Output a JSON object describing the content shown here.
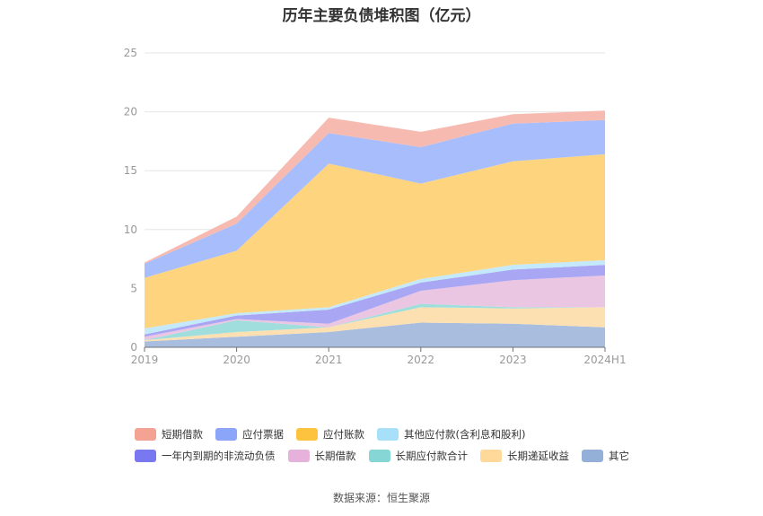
{
  "page": {
    "title": "历年主要负债堆积图（亿元）",
    "source": "数据来源：恒生聚源"
  },
  "chart_data": {
    "type": "area",
    "stacked": true,
    "title": "历年主要负债堆积图（亿元）",
    "xlabel": "",
    "ylabel": "",
    "categories": [
      "2019",
      "2020",
      "2021",
      "2022",
      "2023",
      "2024H1"
    ],
    "ylim": [
      0,
      25
    ],
    "yticks": [
      0,
      5,
      10,
      15,
      20,
      25
    ],
    "grid": true,
    "legend_position": "bottom",
    "series": [
      {
        "name": "其它",
        "color": "#a9bedf",
        "values": [
          0.5,
          0.9,
          1.3,
          2.1,
          2.0,
          1.7
        ]
      },
      {
        "name": "长期递延收益",
        "color": "#fde0b1",
        "values": [
          0.1,
          0.4,
          0.4,
          1.3,
          1.3,
          1.7
        ]
      },
      {
        "name": "长期应付款合计",
        "color": "#a0dede",
        "values": [
          0.0,
          1.0,
          0.0,
          0.3,
          0.1,
          0.0
        ]
      },
      {
        "name": "长期借款",
        "color": "#ebc6e3",
        "values": [
          0.3,
          0.1,
          0.3,
          1.1,
          2.3,
          2.7
        ]
      },
      {
        "name": "一年内到期的非流动负债",
        "color": "#a9a6f3",
        "values": [
          0.2,
          0.3,
          1.2,
          0.7,
          0.9,
          0.9
        ]
      },
      {
        "name": "其他应付款(含利息和股利)",
        "color": "#c3e9fb",
        "values": [
          0.5,
          0.2,
          0.2,
          0.3,
          0.4,
          0.4
        ]
      },
      {
        "name": "应付账款",
        "color": "#fed57e",
        "values": [
          4.3,
          5.3,
          12.2,
          8.1,
          8.8,
          9.0
        ]
      },
      {
        "name": "应付票据",
        "color": "#a8bdfb",
        "values": [
          1.2,
          2.3,
          2.6,
          3.1,
          3.2,
          2.9
        ]
      },
      {
        "name": "短期借款",
        "color": "#f7bab1",
        "values": [
          0.1,
          0.6,
          1.3,
          1.3,
          0.8,
          0.8
        ]
      }
    ],
    "legend": [
      [
        {
          "name": "短期借款",
          "color": "#f4a294"
        },
        {
          "name": "应付票据",
          "color": "#8ba5f9"
        },
        {
          "name": "应付账款",
          "color": "#fdc33f"
        },
        {
          "name": "其他应付款(含利息和股利)",
          "color": "#a7e0f9"
        }
      ],
      [
        {
          "name": "一年内到期的非流动负债",
          "color": "#7a78f0"
        },
        {
          "name": "长期借款",
          "color": "#e6b2dc"
        },
        {
          "name": "长期应付款合计",
          "color": "#86d6d6"
        },
        {
          "name": "长期递延收益",
          "color": "#fed99a"
        },
        {
          "name": "其它",
          "color": "#94b0d9"
        }
      ]
    ]
  }
}
